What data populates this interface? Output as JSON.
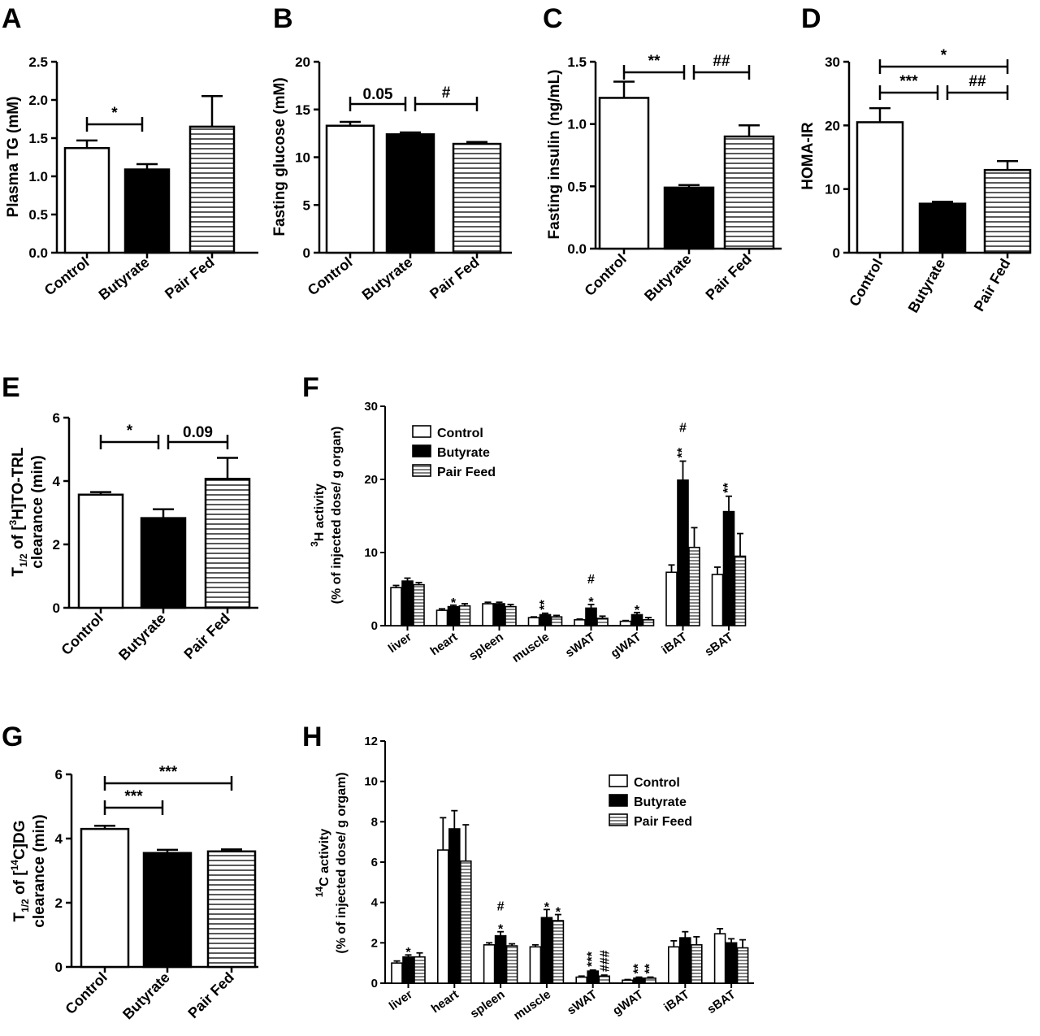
{
  "colors": {
    "control": "#ffffff",
    "butyrate": "#000000",
    "stroke": "#000000"
  },
  "chart_data": [
    {
      "panel": "A",
      "type": "bar",
      "categories": [
        "Control",
        "Butyrate",
        "Pair Fed"
      ],
      "values": [
        1.37,
        1.09,
        1.65
      ],
      "errors": [
        0.1,
        0.07,
        0.4
      ],
      "patterns": [
        "open",
        "solid",
        "hatch"
      ],
      "ylabel": "Plasma TG (mM)",
      "ylim": [
        0,
        2.5
      ],
      "yticks": [
        "0.0",
        "0.5",
        "1.0",
        "1.5",
        "2.0",
        "2.5"
      ],
      "annotations": [
        {
          "from": 0,
          "to": 1,
          "label": "*"
        }
      ]
    },
    {
      "panel": "B",
      "type": "bar",
      "categories": [
        "Control",
        "Butyrate",
        "Pair Fed"
      ],
      "values": [
        13.3,
        12.4,
        11.4
      ],
      "errors": [
        0.4,
        0.2,
        0.2
      ],
      "patterns": [
        "open",
        "solid",
        "hatch"
      ],
      "ylabel": "Fasting glucose (mM)",
      "ylim": [
        0,
        20
      ],
      "yticks": [
        "0",
        "5",
        "10",
        "15",
        "20"
      ],
      "annotations": [
        {
          "from": 0,
          "to": 1,
          "label": "0.05"
        },
        {
          "from": 1,
          "to": 2,
          "label": "#"
        }
      ]
    },
    {
      "panel": "C",
      "type": "bar",
      "categories": [
        "Control",
        "Butyrate",
        "Pair Fed"
      ],
      "values": [
        1.21,
        0.49,
        0.9
      ],
      "errors": [
        0.13,
        0.02,
        0.09
      ],
      "patterns": [
        "open",
        "solid",
        "hatch"
      ],
      "ylabel": "Fasting insulin (ng/mL)",
      "ylim": [
        0,
        1.5
      ],
      "yticks": [
        "0.0",
        "0.5",
        "1.0",
        "1.5"
      ],
      "annotations": [
        {
          "from": 0,
          "to": 1,
          "label": "**"
        },
        {
          "from": 1,
          "to": 2,
          "label": "##"
        }
      ]
    },
    {
      "panel": "D",
      "type": "bar",
      "categories": [
        "Control",
        "Butyrate",
        "Pair Fed"
      ],
      "values": [
        20.5,
        7.7,
        13
      ],
      "errors": [
        2.2,
        0.3,
        1.4
      ],
      "patterns": [
        "open",
        "solid",
        "hatch"
      ],
      "ylabel": "HOMA-IR",
      "ylim": [
        0,
        30
      ],
      "yticks": [
        "0",
        "10",
        "20",
        "30"
      ],
      "annotations": [
        {
          "from": 0,
          "to": 2,
          "label": "*"
        },
        {
          "from": 0,
          "to": 1,
          "label": "***"
        },
        {
          "from": 1,
          "to": 2,
          "label": "##"
        }
      ]
    },
    {
      "panel": "E",
      "type": "bar",
      "categories": [
        "Control",
        "Butyrate",
        "Pair Fed"
      ],
      "values": [
        3.57,
        2.83,
        4.07
      ],
      "errors": [
        0.08,
        0.28,
        0.66
      ],
      "patterns": [
        "open",
        "solid",
        "hatch"
      ],
      "ylabel_top": "T1/2 of [3H]TO-TRL",
      "ylabel_bottom": "clearance (min)",
      "ylim": [
        0,
        6
      ],
      "yticks": [
        "0",
        "2",
        "4",
        "6"
      ],
      "annotations": [
        {
          "from": 0,
          "to": 1,
          "label": "*"
        },
        {
          "from": 1,
          "to": 2,
          "label": "0.09"
        }
      ]
    },
    {
      "panel": "F",
      "type": "bar",
      "categories": [
        "liver",
        "heart",
        "spleen",
        "muscle",
        "sWAT",
        "gWAT",
        "iBAT",
        "sBAT"
      ],
      "series": [
        {
          "name": "Control",
          "pattern": "open",
          "values": [
            5.2,
            2.1,
            3.0,
            1.1,
            0.8,
            0.6,
            7.3,
            7.0
          ],
          "errors": [
            0.3,
            0.2,
            0.2,
            0.1,
            0.1,
            0.1,
            1.0,
            1.0
          ]
        },
        {
          "name": "Butyrate",
          "pattern": "solid",
          "values": [
            6.1,
            2.6,
            3.0,
            1.5,
            2.4,
            1.5,
            19.9,
            15.6
          ],
          "errors": [
            0.4,
            0.2,
            0.2,
            0.2,
            0.5,
            0.3,
            2.6,
            2.1
          ]
        },
        {
          "name": "Pair Feed",
          "pattern": "hatch",
          "values": [
            5.6,
            2.7,
            2.6,
            1.2,
            1.0,
            0.8,
            10.7,
            9.5
          ],
          "errors": [
            0.3,
            0.3,
            0.3,
            0.2,
            0.3,
            0.3,
            2.7,
            3.1
          ]
        }
      ],
      "ylabel_top": "3H activity",
      "ylabel_bottom": "(% of injected dose/ g organ)",
      "ylim": [
        0,
        30
      ],
      "yticks": [
        "0",
        "10",
        "20",
        "30"
      ],
      "legend": "top-left",
      "annotations": [
        {
          "category": "heart",
          "lines": [
            "*"
          ]
        },
        {
          "category": "muscle",
          "lines": [
            "**"
          ]
        },
        {
          "category": "sWAT",
          "lines": [
            "#",
            "*"
          ]
        },
        {
          "category": "gWAT",
          "lines": [
            "*"
          ]
        },
        {
          "category": "iBAT",
          "lines": [
            "#",
            "**"
          ]
        },
        {
          "category": "sBAT",
          "lines": [
            "**"
          ]
        }
      ]
    },
    {
      "panel": "G",
      "type": "bar",
      "categories": [
        "Control",
        "Butyrate",
        "Pair Fed"
      ],
      "values": [
        4.3,
        3.55,
        3.6
      ],
      "errors": [
        0.1,
        0.1,
        0.06
      ],
      "patterns": [
        "open",
        "solid",
        "hatch"
      ],
      "ylabel_top": "T1/2 of [14C]DG",
      "ylabel_bottom": "clearance (min)",
      "ylim": [
        0,
        6
      ],
      "yticks": [
        "0",
        "2",
        "4",
        "6"
      ],
      "annotations": [
        {
          "from": 0,
          "to": 2,
          "label": "***"
        },
        {
          "from": 0,
          "to": 1,
          "label": "***"
        }
      ]
    },
    {
      "panel": "H",
      "type": "bar",
      "categories": [
        "liver",
        "heart",
        "spleen",
        "muscle",
        "sWAT",
        "gWAT",
        "iBAT",
        "sBAT"
      ],
      "series": [
        {
          "name": "Control",
          "pattern": "open",
          "values": [
            1.0,
            6.6,
            1.9,
            1.8,
            0.3,
            0.15,
            1.8,
            2.45
          ],
          "errors": [
            0.1,
            1.6,
            0.1,
            0.1,
            0.05,
            0.03,
            0.3,
            0.25
          ]
        },
        {
          "name": "Butyrate",
          "pattern": "solid",
          "values": [
            1.3,
            7.65,
            2.35,
            3.25,
            0.6,
            0.25,
            2.25,
            2.0
          ],
          "errors": [
            0.1,
            0.9,
            0.2,
            0.4,
            0.05,
            0.05,
            0.3,
            0.2
          ]
        },
        {
          "name": "Pair Feed",
          "pattern": "hatch",
          "values": [
            1.3,
            6.05,
            1.85,
            3.1,
            0.35,
            0.25,
            1.9,
            1.75
          ],
          "errors": [
            0.2,
            1.8,
            0.1,
            0.3,
            0.05,
            0.05,
            0.4,
            0.4
          ]
        }
      ],
      "ylabel_top": "14C activity",
      "ylabel_bottom": "(% of injected dose/ g orgam)",
      "ylim": [
        0,
        12
      ],
      "yticks": [
        "0",
        "2",
        "4",
        "6",
        "8",
        "10",
        "12"
      ],
      "legend": "top-right",
      "annotations": [
        {
          "category": "liver",
          "series": 1,
          "lines": [
            "*"
          ]
        },
        {
          "category": "spleen",
          "series": 1,
          "lines": [
            "#",
            "*"
          ]
        },
        {
          "category": "muscle",
          "series": 1,
          "lines": [
            "*"
          ]
        },
        {
          "category": "muscle",
          "series": 2,
          "lines": [
            "*"
          ]
        },
        {
          "category": "sWAT",
          "series": 1,
          "lines": [
            "***"
          ]
        },
        {
          "category": "sWAT",
          "series": 2,
          "lines": [
            "###"
          ]
        },
        {
          "category": "gWAT",
          "series": 1,
          "lines": [
            "**"
          ]
        },
        {
          "category": "gWAT",
          "series": 2,
          "lines": [
            "**"
          ]
        }
      ]
    }
  ]
}
